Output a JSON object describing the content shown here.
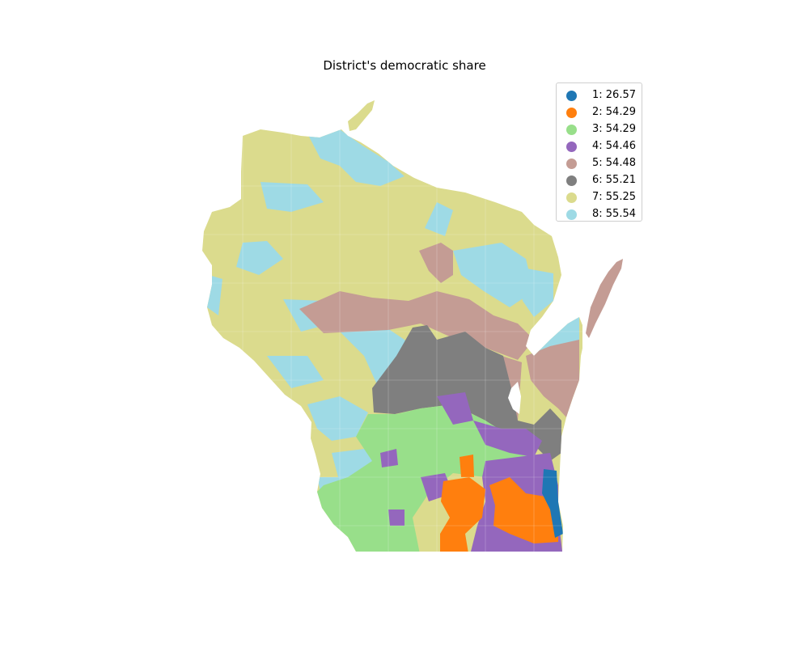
{
  "title": "District's democratic share",
  "districts": [
    {
      "id": "1",
      "label": "1: 26.57",
      "share": 26.57,
      "color": "#1f77b4",
      "icon": "circle-marker-icon"
    },
    {
      "id": "2",
      "label": "2: 54.29",
      "share": 54.29,
      "color": "#ff7f0e",
      "icon": "circle-marker-icon"
    },
    {
      "id": "3",
      "label": "3: 54.29",
      "share": 54.29,
      "color": "#98df8a",
      "icon": "circle-marker-icon"
    },
    {
      "id": "4",
      "label": "4: 54.46",
      "share": 54.46,
      "color": "#9467bd",
      "icon": "circle-marker-icon"
    },
    {
      "id": "5",
      "label": "5: 54.48",
      "share": 54.48,
      "color": "#c49c94",
      "icon": "circle-marker-icon"
    },
    {
      "id": "6",
      "label": "6: 55.21",
      "share": 55.21,
      "color": "#7f7f7f",
      "icon": "circle-marker-icon"
    },
    {
      "id": "7",
      "label": "7: 55.25",
      "share": 55.25,
      "color": "#dbdb8d",
      "icon": "circle-marker-icon"
    },
    {
      "id": "8",
      "label": "8: 55.54",
      "share": 55.54,
      "color": "#9edae5",
      "icon": "circle-marker-icon"
    }
  ],
  "legend": {
    "placement": "top-right"
  },
  "map": {
    "region": "Wisconsin",
    "projection": "planar",
    "axes_visible": false
  }
}
